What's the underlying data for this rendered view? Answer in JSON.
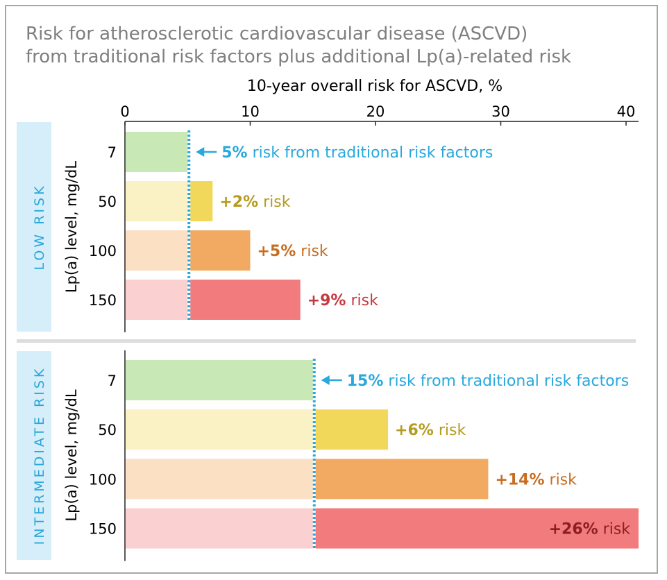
{
  "title_lines": [
    "Risk for atherosclerotic cardiovascular disease (ASCVD)",
    "from traditional risk factors plus additional Lp(a)-related risk"
  ],
  "chart_data": {
    "type": "bar",
    "orientation": "horizontal-stacked",
    "xlabel": "10-year overall risk for ASCVD, %",
    "xticks": [
      0,
      10,
      20,
      30,
      40
    ],
    "xlim": [
      0,
      41
    ],
    "ylabel": "Lp(a) level, mg/dL",
    "categories": [
      "7",
      "50",
      "100",
      "150"
    ],
    "colors": {
      "base": [
        "#c8e8b6",
        "#faf1c5",
        "#fbe0c4",
        "#fad0d1"
      ],
      "added": [
        "#c8e8b6",
        "#f2d85a",
        "#f2aa63",
        "#f27b7d"
      ],
      "text": [
        "#29a8de",
        "#b59b1f",
        "#c76d22",
        "#c53a3f"
      ],
      "baseline": "#29a8de",
      "panel_label_bg": "#d6eefa",
      "divider": "#dddddd"
    },
    "panels": [
      {
        "label": "LOW RISK",
        "baseline": 5,
        "baseline_annotation": {
          "value": "5%",
          "text": " risk from traditional risk factors"
        },
        "added": [
          0,
          2,
          5,
          9
        ],
        "annotations": [
          {
            "value": "+2%",
            "text": " risk"
          },
          {
            "value": "+5%",
            "text": " risk"
          },
          {
            "value": "+9%",
            "text": " risk"
          }
        ]
      },
      {
        "label": "INTERMEDIATE RISK",
        "baseline": 15,
        "baseline_annotation": {
          "value": "15%",
          "text": " risk from traditional risk factors"
        },
        "added": [
          0,
          6,
          14,
          26
        ],
        "annotations": [
          {
            "value": "+6%",
            "text": " risk"
          },
          {
            "value": "+14%",
            "text": " risk"
          },
          {
            "value": "+26%",
            "text": " risk"
          }
        ]
      }
    ]
  }
}
